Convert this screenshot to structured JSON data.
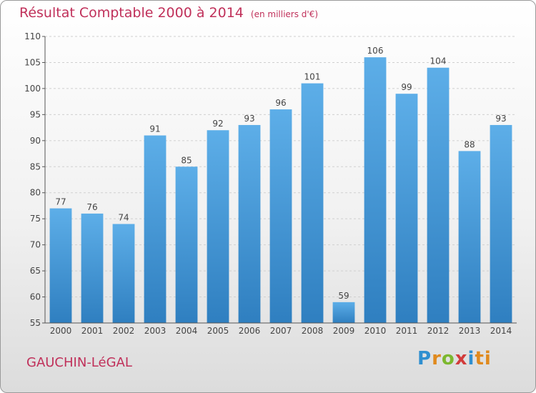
{
  "header": {
    "title": "Résultat Comptable 2000 à 2014",
    "unit": "(en milliers d'€)"
  },
  "footer": {
    "commune": "GAUCHIN-LéGAL",
    "logo_letters": [
      "P",
      "r",
      "o",
      "x",
      "i",
      "ti"
    ]
  },
  "colors": {
    "title": "#c0305a",
    "bar_top": "#5daee8",
    "bar_bottom": "#2f7fc0",
    "grid": "#d0d0d0"
  },
  "chart_data": {
    "type": "bar",
    "title": "Résultat Comptable 2000 à 2014",
    "ylabel": "",
    "xlabel": "",
    "categories": [
      "2000",
      "2001",
      "2002",
      "2003",
      "2004",
      "2005",
      "2006",
      "2007",
      "2008",
      "2009",
      "2010",
      "2011",
      "2012",
      "2013",
      "2014"
    ],
    "values": [
      77,
      76,
      74,
      91,
      85,
      92,
      93,
      96,
      101,
      59,
      106,
      99,
      104,
      88,
      93
    ],
    "ylim": [
      55,
      110
    ],
    "yticks": [
      55,
      60,
      65,
      70,
      75,
      80,
      85,
      90,
      95,
      100,
      105,
      110
    ],
    "grid": true
  }
}
